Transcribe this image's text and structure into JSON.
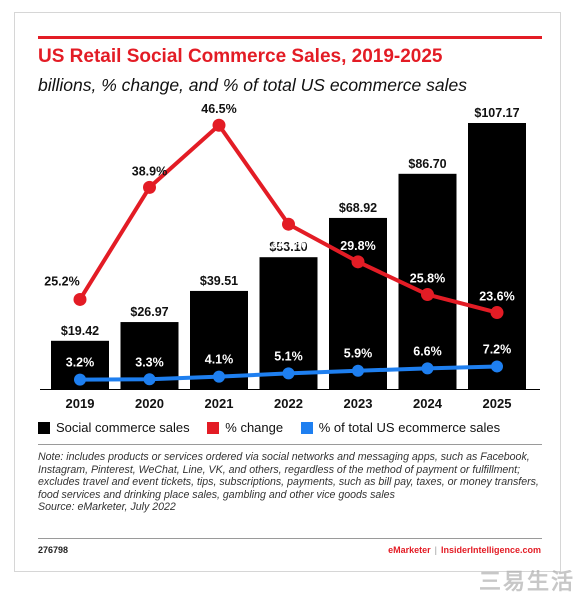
{
  "header": {
    "title": "US Retail Social Commerce Sales, 2019-2025",
    "subtitle": "billions, % change, and % of total US ecommerce sales"
  },
  "colors": {
    "bars": "#000000",
    "pct_change": "#e31c25",
    "pct_total": "#1e7ff0",
    "accent": "#e31c25"
  },
  "chart_data": {
    "type": "bar",
    "title": "US Retail Social Commerce Sales, 2019-2025",
    "subtitle": "billions, % change, and % of total US ecommerce sales",
    "categories": [
      "2019",
      "2020",
      "2021",
      "2022",
      "2023",
      "2024",
      "2025"
    ],
    "series": [
      {
        "name": "Social commerce sales",
        "type": "bar",
        "values": [
          19.42,
          26.97,
          39.51,
          53.1,
          68.92,
          86.7,
          107.17
        ],
        "labels": [
          "$19.42",
          "$26.97",
          "$39.51",
          "$53.10",
          "$68.92",
          "$86.70",
          "$107.17"
        ]
      },
      {
        "name": "% change",
        "type": "line",
        "values": [
          25.2,
          38.9,
          46.5,
          34.4,
          29.8,
          25.8,
          23.6
        ],
        "labels": [
          "25.2%",
          "38.9%",
          "46.5%",
          "34.4%",
          "29.8%",
          "25.8%",
          "23.6%"
        ]
      },
      {
        "name": "% of total US ecommerce sales",
        "type": "line",
        "values": [
          3.2,
          3.3,
          4.1,
          5.1,
          5.9,
          6.6,
          7.2
        ],
        "labels": [
          "3.2%",
          "3.3%",
          "4.1%",
          "5.1%",
          "5.9%",
          "6.6%",
          "7.2%"
        ]
      }
    ],
    "legend_position": "bottom",
    "grid": false
  },
  "legend": [
    {
      "label": "Social commerce sales",
      "color": "#000000"
    },
    {
      "label": "% change",
      "color": "#e31c25"
    },
    {
      "label": "% of total US ecommerce sales",
      "color": "#1e7ff0"
    }
  ],
  "note": {
    "text": "Note: includes products or services ordered via social networks and messaging apps, such as Facebook, Instagram, Pinterest, WeChat, Line, VK, and others, regardless of the method of payment or fulfillment; excludes travel and event tickets, tips, subscriptions, payments, such as bill pay, taxes, or money transfers, food services and drinking place sales, gambling and other vice goods sales",
    "source": "Source: eMarketer, July 2022"
  },
  "footer": {
    "id": "276798",
    "brand": "eMarketer",
    "separator": "|",
    "site": "InsiderIntelligence.com"
  },
  "watermark": "三易生活"
}
